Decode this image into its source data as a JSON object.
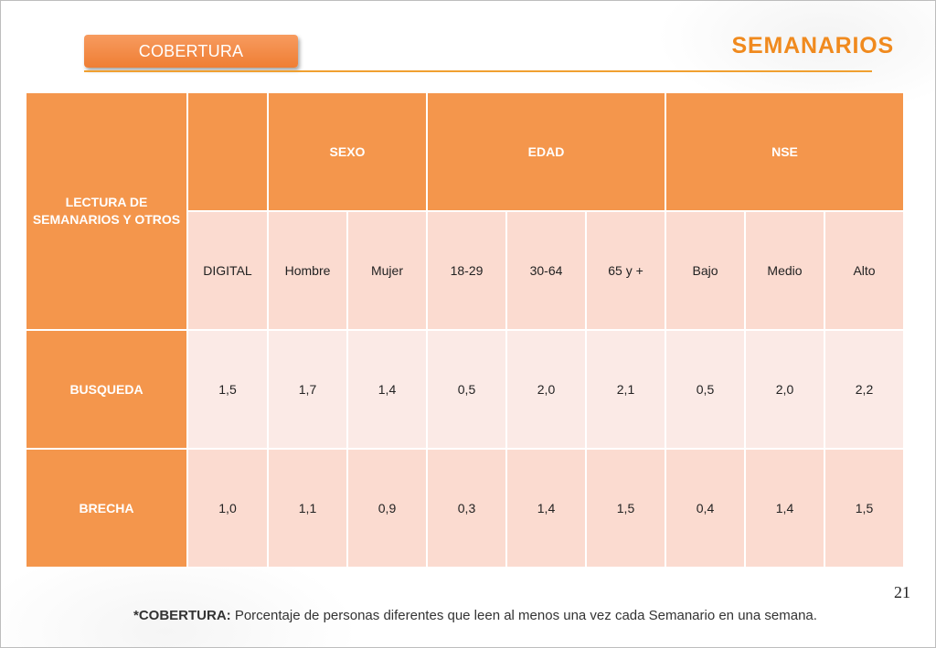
{
  "header": {
    "tab_label": "COBERTURA",
    "title": "SEMANARIOS"
  },
  "table": {
    "corner_label": "LECTURA DE SEMANARIOS Y OTROS",
    "groups": {
      "blank": "",
      "sexo": "SEXO",
      "edad": "EDAD",
      "nse": "NSE"
    },
    "columns": [
      "DIGITAL",
      "Hombre",
      "Mujer",
      "18-29",
      "30-64",
      "65 y +",
      "Bajo",
      "Medio",
      "Alto"
    ],
    "rows": [
      {
        "label": "BUSQUEDA",
        "values": [
          "1,5",
          "1,7",
          "1,4",
          "0,5",
          "2,0",
          "2,1",
          "0,5",
          "2,0",
          "2,2"
        ]
      },
      {
        "label": "BRECHA",
        "values": [
          "1,0",
          "1,1",
          "0,9",
          "0,3",
          "1,4",
          "1,5",
          "0,4",
          "1,4",
          "1,5"
        ]
      }
    ]
  },
  "page_number": "21",
  "footnote": {
    "term": "*COBERTURA:",
    "text": " Porcentaje de personas diferentes que leen al menos una vez cada Semanario en una semana."
  },
  "colors": {
    "accent_orange": "#f08a1e",
    "header_fill": "#f4964c",
    "cell_light": "#fbeae6",
    "cell_medium": "#fbdbd0"
  }
}
